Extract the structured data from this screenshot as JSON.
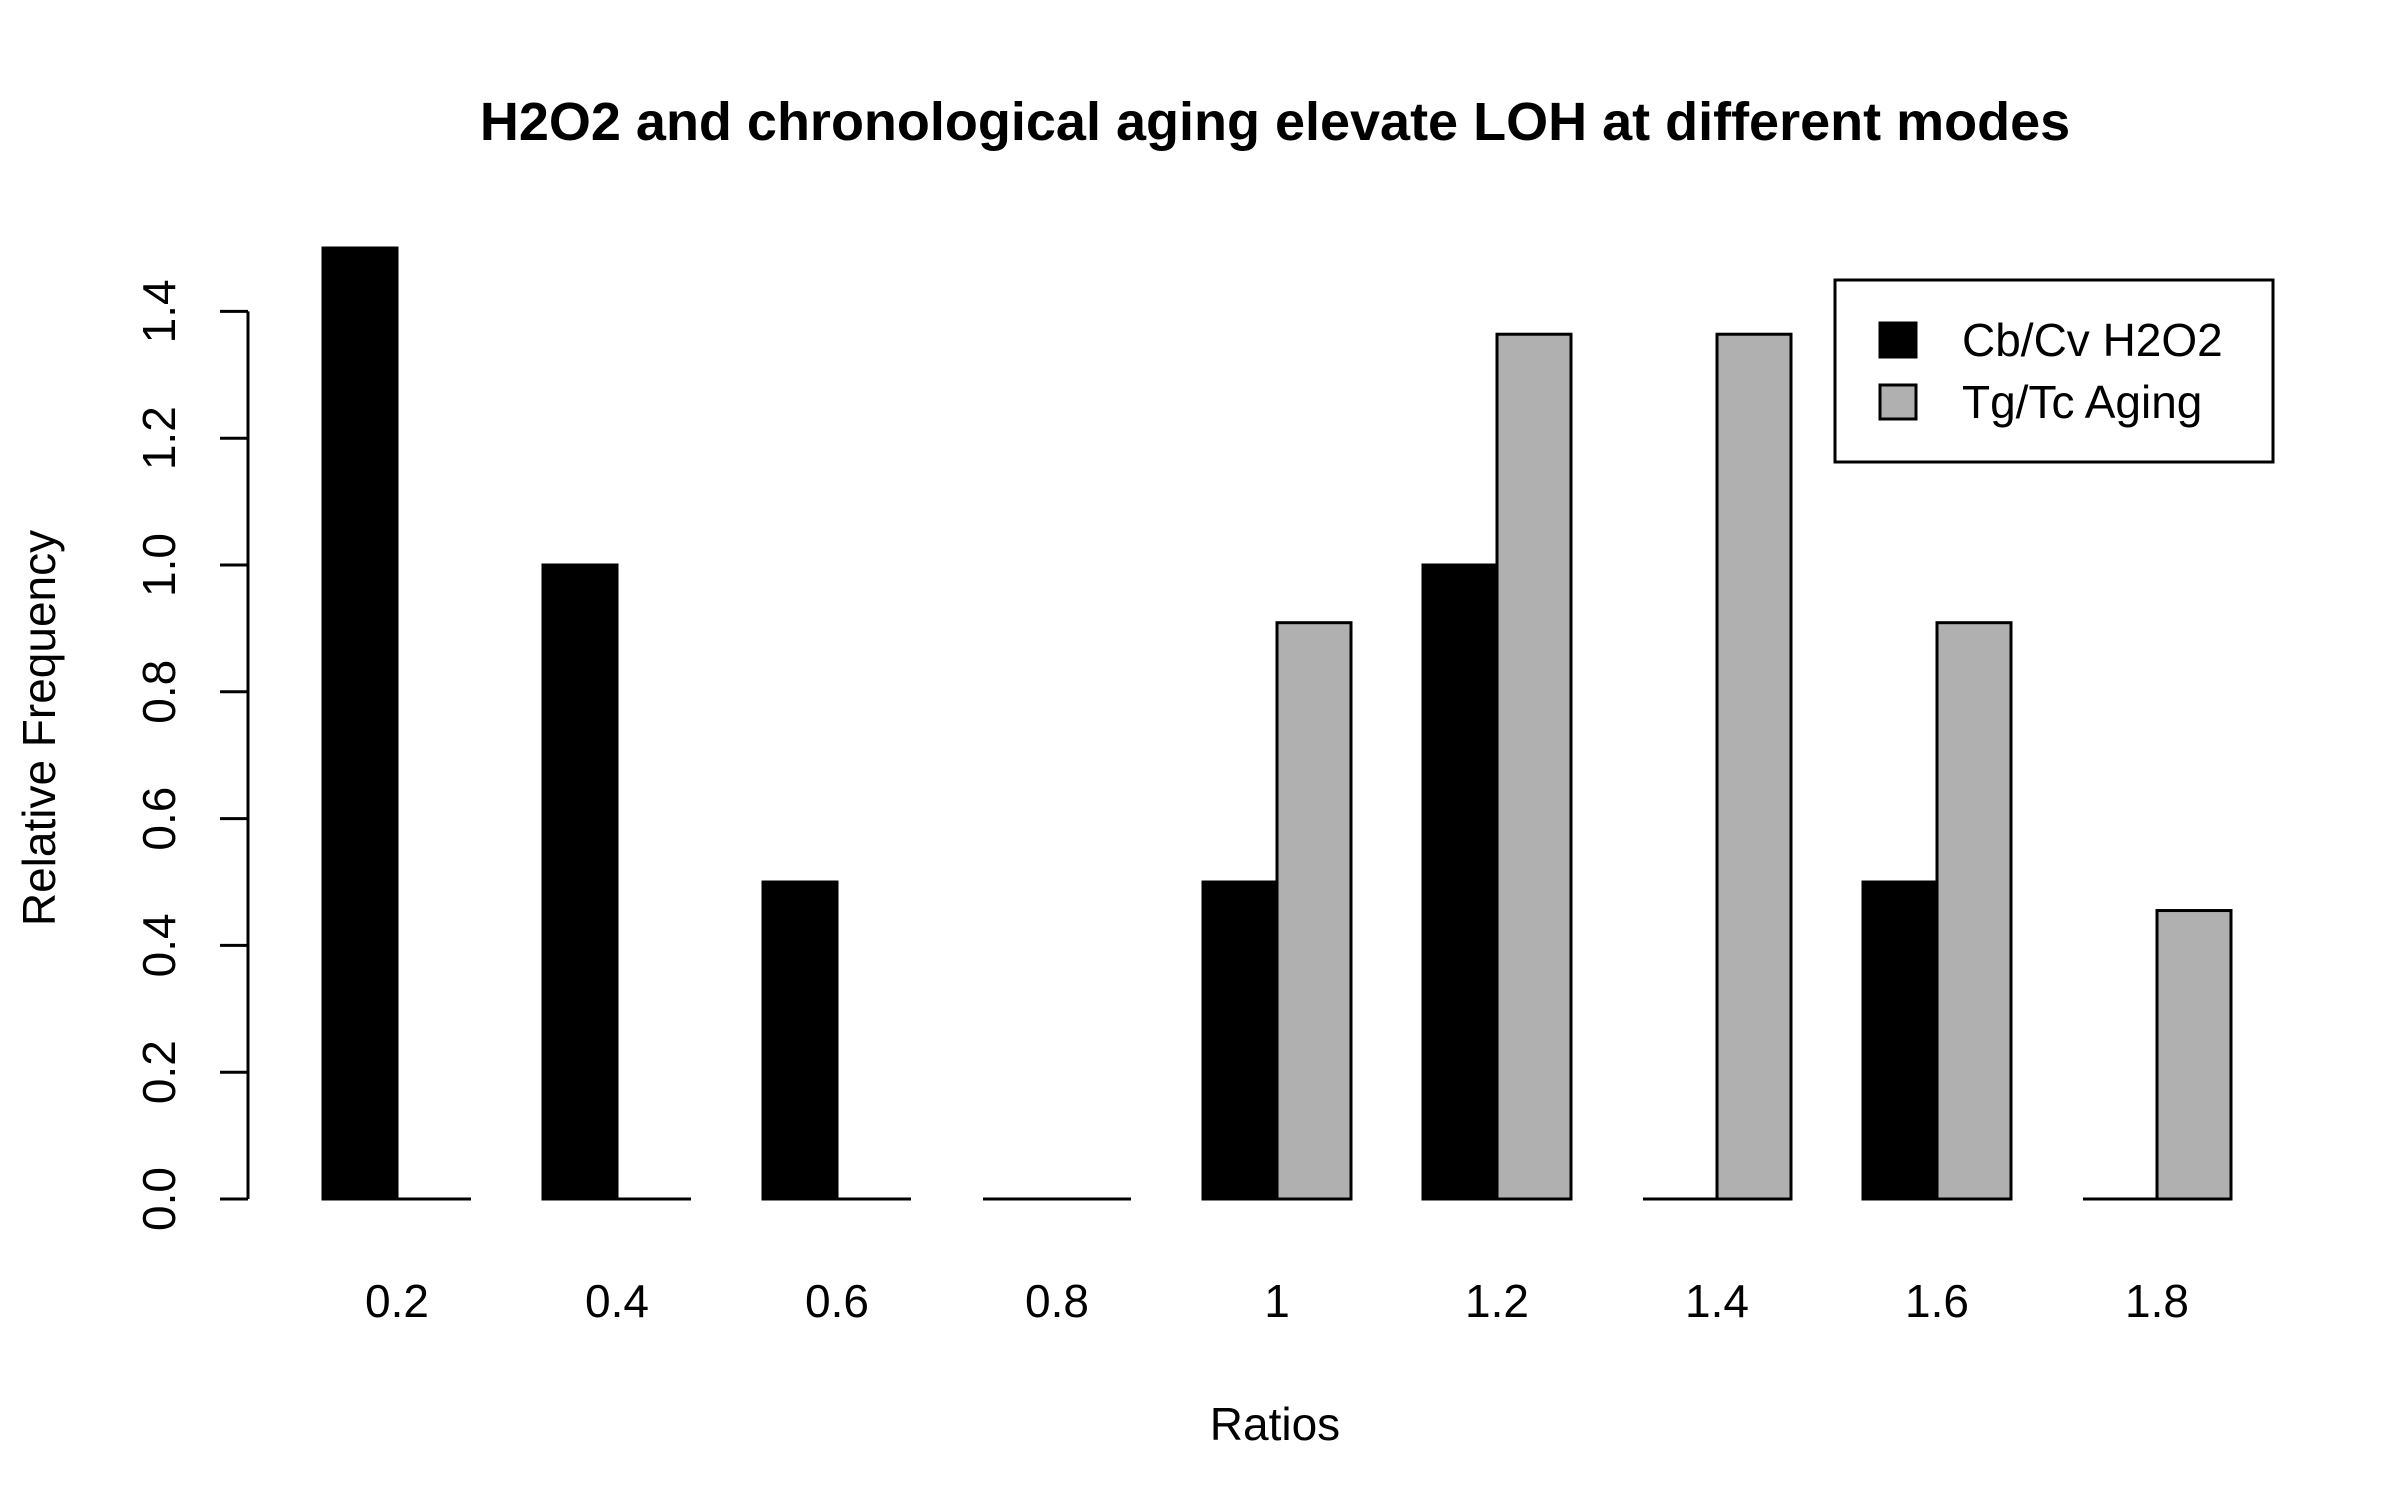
{
  "chart_data": {
    "type": "bar",
    "title": "H2O2 and chronological aging elevate LOH at different modes",
    "xlabel": "Ratios",
    "ylabel": "Relative Frequency",
    "categories": [
      "0.2",
      "0.4",
      "0.6",
      "0.8",
      "1",
      "1.2",
      "1.4",
      "1.6",
      "1.8"
    ],
    "yticks": [
      "0.0",
      "0.2",
      "0.4",
      "0.6",
      "0.8",
      "1.0",
      "1.2",
      "1.4"
    ],
    "ylim": [
      0,
      1.5
    ],
    "series": [
      {
        "name": "Cb/Cv H2O2",
        "color": "#000000",
        "values": [
          1.5,
          1.0,
          0.5,
          0.0,
          0.5,
          1.0,
          0.0,
          0.5,
          0.0
        ]
      },
      {
        "name": "Tg/Tc Aging",
        "color": "#b0b0b0",
        "values": [
          0.0,
          0.0,
          0.0,
          0.0,
          0.909,
          1.364,
          1.364,
          0.909,
          0.455
        ]
      }
    ],
    "legend_position": "top-right",
    "grid": false
  }
}
